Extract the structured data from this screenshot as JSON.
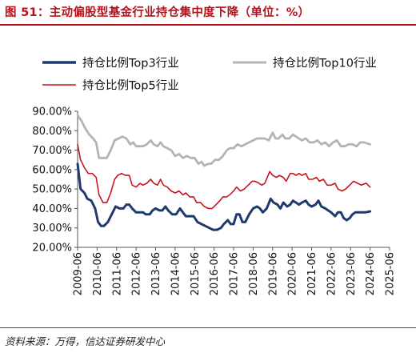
{
  "title": "图 51：主动偏股型基金行业持仓集中度下降（单位：%）",
  "source": "资料来源：万得，信达证券研发中心",
  "chart_data": {
    "type": "line",
    "y_ticks": [
      "20.00%",
      "30.00%",
      "40.00%",
      "50.00%",
      "60.00%",
      "70.00%",
      "80.00%",
      "90.00%"
    ],
    "ylim": [
      20,
      90
    ],
    "x_ticks": [
      "2009-06",
      "2010-06",
      "2011-06",
      "2012-06",
      "2013-06",
      "2014-06",
      "2015-06",
      "2016-06",
      "2017-06",
      "2018-06",
      "2019-06",
      "2020-06",
      "2021-06",
      "2022-06",
      "2023-06",
      "2024-06",
      "2025-06"
    ],
    "x_start": 2009.5,
    "x_end": 2025.5,
    "legend": "top",
    "grid": false,
    "series": [
      {
        "name": "持仓比例Top3行业",
        "color": "#1f3a6e",
        "points": [
          [
            2009.5,
            63
          ],
          [
            2009.65,
            50
          ],
          [
            2009.85,
            48
          ],
          [
            2010.0,
            45
          ],
          [
            2010.2,
            44
          ],
          [
            2010.4,
            40
          ],
          [
            2010.55,
            33
          ],
          [
            2010.7,
            31
          ],
          [
            2010.85,
            31
          ],
          [
            2011.05,
            33
          ],
          [
            2011.25,
            37
          ],
          [
            2011.45,
            41
          ],
          [
            2011.65,
            40
          ],
          [
            2011.85,
            40
          ],
          [
            2012.0,
            42
          ],
          [
            2012.15,
            42
          ],
          [
            2012.3,
            40
          ],
          [
            2012.5,
            38
          ],
          [
            2012.65,
            38
          ],
          [
            2012.85,
            38
          ],
          [
            2013.0,
            37
          ],
          [
            2013.2,
            37
          ],
          [
            2013.35,
            39
          ],
          [
            2013.5,
            40
          ],
          [
            2013.7,
            39
          ],
          [
            2013.85,
            39
          ],
          [
            2014.0,
            41
          ],
          [
            2014.15,
            39
          ],
          [
            2014.35,
            37
          ],
          [
            2014.55,
            37
          ],
          [
            2014.75,
            40
          ],
          [
            2014.9,
            38
          ],
          [
            2015.05,
            36
          ],
          [
            2015.25,
            36
          ],
          [
            2015.45,
            36
          ],
          [
            2015.65,
            33
          ],
          [
            2015.85,
            32
          ],
          [
            2016.05,
            31
          ],
          [
            2016.25,
            30
          ],
          [
            2016.45,
            29
          ],
          [
            2016.65,
            29
          ],
          [
            2016.85,
            30
          ],
          [
            2017.0,
            32
          ],
          [
            2017.2,
            34
          ],
          [
            2017.35,
            32
          ],
          [
            2017.5,
            32
          ],
          [
            2017.65,
            37
          ],
          [
            2017.8,
            37
          ],
          [
            2017.95,
            33
          ],
          [
            2018.1,
            33
          ],
          [
            2018.3,
            37
          ],
          [
            2018.5,
            40
          ],
          [
            2018.7,
            41
          ],
          [
            2018.85,
            40
          ],
          [
            2019.0,
            38
          ],
          [
            2019.2,
            40
          ],
          [
            2019.4,
            45
          ],
          [
            2019.55,
            43
          ],
          [
            2019.75,
            42
          ],
          [
            2019.9,
            40
          ],
          [
            2020.05,
            43
          ],
          [
            2020.25,
            41
          ],
          [
            2020.4,
            42
          ],
          [
            2020.55,
            44
          ],
          [
            2020.7,
            43
          ],
          [
            2020.85,
            42
          ],
          [
            2021.0,
            43
          ],
          [
            2021.2,
            44
          ],
          [
            2021.35,
            42
          ],
          [
            2021.5,
            41
          ],
          [
            2021.7,
            42
          ],
          [
            2021.85,
            44
          ],
          [
            2022.0,
            41
          ],
          [
            2022.2,
            40
          ],
          [
            2022.35,
            39
          ],
          [
            2022.5,
            38
          ],
          [
            2022.7,
            36
          ],
          [
            2022.85,
            38
          ],
          [
            2023.0,
            38
          ],
          [
            2023.15,
            35
          ],
          [
            2023.3,
            34
          ],
          [
            2023.45,
            35
          ],
          [
            2023.6,
            37
          ],
          [
            2023.75,
            38
          ],
          [
            2023.9,
            38
          ],
          [
            2024.05,
            38
          ],
          [
            2024.25,
            38
          ],
          [
            2024.5,
            38.5
          ]
        ]
      },
      {
        "name": "持仓比例Top10行业",
        "color": "#b4b4b4",
        "points": [
          [
            2009.5,
            88
          ],
          [
            2009.7,
            85
          ],
          [
            2009.9,
            81
          ],
          [
            2010.1,
            78
          ],
          [
            2010.3,
            76
          ],
          [
            2010.45,
            74
          ],
          [
            2010.6,
            66
          ],
          [
            2010.8,
            66
          ],
          [
            2011.0,
            66
          ],
          [
            2011.2,
            70
          ],
          [
            2011.4,
            75
          ],
          [
            2011.6,
            76
          ],
          [
            2011.8,
            77
          ],
          [
            2012.0,
            76
          ],
          [
            2012.2,
            73
          ],
          [
            2012.35,
            74
          ],
          [
            2012.5,
            72
          ],
          [
            2012.7,
            72
          ],
          [
            2012.85,
            72
          ],
          [
            2013.05,
            73
          ],
          [
            2013.25,
            75
          ],
          [
            2013.4,
            73
          ],
          [
            2013.6,
            72
          ],
          [
            2013.75,
            74
          ],
          [
            2013.9,
            72
          ],
          [
            2014.1,
            71
          ],
          [
            2014.3,
            70
          ],
          [
            2014.5,
            67
          ],
          [
            2014.7,
            68
          ],
          [
            2014.9,
            66
          ],
          [
            2015.1,
            67
          ],
          [
            2015.3,
            66
          ],
          [
            2015.5,
            66
          ],
          [
            2015.7,
            63
          ],
          [
            2015.85,
            64
          ],
          [
            2016.0,
            62
          ],
          [
            2016.2,
            63
          ],
          [
            2016.35,
            63
          ],
          [
            2016.55,
            65
          ],
          [
            2016.75,
            65
          ],
          [
            2016.95,
            67
          ],
          [
            2017.15,
            70
          ],
          [
            2017.3,
            71
          ],
          [
            2017.5,
            71
          ],
          [
            2017.7,
            73
          ],
          [
            2017.9,
            72
          ],
          [
            2018.1,
            73
          ],
          [
            2018.3,
            74
          ],
          [
            2018.5,
            75
          ],
          [
            2018.7,
            76
          ],
          [
            2018.9,
            76
          ],
          [
            2019.1,
            76
          ],
          [
            2019.3,
            75
          ],
          [
            2019.5,
            79
          ],
          [
            2019.65,
            76
          ],
          [
            2019.8,
            76
          ],
          [
            2020.0,
            78
          ],
          [
            2020.15,
            76
          ],
          [
            2020.35,
            76
          ],
          [
            2020.55,
            78
          ],
          [
            2020.7,
            77
          ],
          [
            2020.85,
            76
          ],
          [
            2021.0,
            75
          ],
          [
            2021.2,
            76
          ],
          [
            2021.4,
            74
          ],
          [
            2021.6,
            74
          ],
          [
            2021.8,
            75
          ],
          [
            2022.0,
            73
          ],
          [
            2022.2,
            74
          ],
          [
            2022.4,
            72
          ],
          [
            2022.6,
            74
          ],
          [
            2022.8,
            75
          ],
          [
            2023.0,
            72
          ],
          [
            2023.2,
            72
          ],
          [
            2023.4,
            73
          ],
          [
            2023.6,
            73
          ],
          [
            2023.8,
            72
          ],
          [
            2024.0,
            74
          ],
          [
            2024.2,
            74
          ],
          [
            2024.5,
            73
          ]
        ]
      },
      {
        "name": "持仓比例Top5行业",
        "color": "#c8171e",
        "points": [
          [
            2009.5,
            73
          ],
          [
            2009.65,
            65
          ],
          [
            2009.85,
            61
          ],
          [
            2010.05,
            58
          ],
          [
            2010.25,
            58
          ],
          [
            2010.45,
            56
          ],
          [
            2010.6,
            47
          ],
          [
            2010.8,
            43
          ],
          [
            2011.0,
            43
          ],
          [
            2011.2,
            48
          ],
          [
            2011.4,
            55
          ],
          [
            2011.55,
            57
          ],
          [
            2011.75,
            58
          ],
          [
            2011.95,
            57
          ],
          [
            2012.15,
            57
          ],
          [
            2012.3,
            52
          ],
          [
            2012.5,
            51
          ],
          [
            2012.7,
            53
          ],
          [
            2012.85,
            52
          ],
          [
            2013.05,
            53
          ],
          [
            2013.25,
            55
          ],
          [
            2013.4,
            53
          ],
          [
            2013.6,
            52
          ],
          [
            2013.75,
            55
          ],
          [
            2013.9,
            52
          ],
          [
            2014.1,
            51
          ],
          [
            2014.3,
            49
          ],
          [
            2014.5,
            48
          ],
          [
            2014.7,
            49
          ],
          [
            2014.9,
            47
          ],
          [
            2015.05,
            48
          ],
          [
            2015.25,
            46
          ],
          [
            2015.45,
            46
          ],
          [
            2015.6,
            43
          ],
          [
            2015.8,
            43
          ],
          [
            2016.0,
            41
          ],
          [
            2016.2,
            40
          ],
          [
            2016.4,
            40
          ],
          [
            2016.6,
            42
          ],
          [
            2016.8,
            44
          ],
          [
            2016.95,
            46
          ],
          [
            2017.15,
            46
          ],
          [
            2017.3,
            47
          ],
          [
            2017.5,
            49
          ],
          [
            2017.65,
            51
          ],
          [
            2017.85,
            49
          ],
          [
            2018.05,
            50
          ],
          [
            2018.25,
            52
          ],
          [
            2018.45,
            54
          ],
          [
            2018.6,
            54
          ],
          [
            2018.8,
            53
          ],
          [
            2018.95,
            52
          ],
          [
            2019.1,
            53
          ],
          [
            2019.35,
            59
          ],
          [
            2019.5,
            57
          ],
          [
            2019.7,
            56
          ],
          [
            2019.85,
            57
          ],
          [
            2020.05,
            56
          ],
          [
            2020.2,
            54
          ],
          [
            2020.4,
            58
          ],
          [
            2020.55,
            58
          ],
          [
            2020.7,
            57
          ],
          [
            2020.85,
            58
          ],
          [
            2021.0,
            57
          ],
          [
            2021.2,
            58
          ],
          [
            2021.35,
            55
          ],
          [
            2021.55,
            55
          ],
          [
            2021.75,
            56
          ],
          [
            2021.9,
            54
          ],
          [
            2022.1,
            55
          ],
          [
            2022.3,
            52
          ],
          [
            2022.5,
            52
          ],
          [
            2022.7,
            53
          ],
          [
            2022.85,
            50
          ],
          [
            2023.05,
            49
          ],
          [
            2023.25,
            50
          ],
          [
            2023.45,
            52
          ],
          [
            2023.65,
            54
          ],
          [
            2023.85,
            53
          ],
          [
            2024.05,
            52
          ],
          [
            2024.3,
            53
          ],
          [
            2024.5,
            51
          ]
        ]
      }
    ]
  }
}
